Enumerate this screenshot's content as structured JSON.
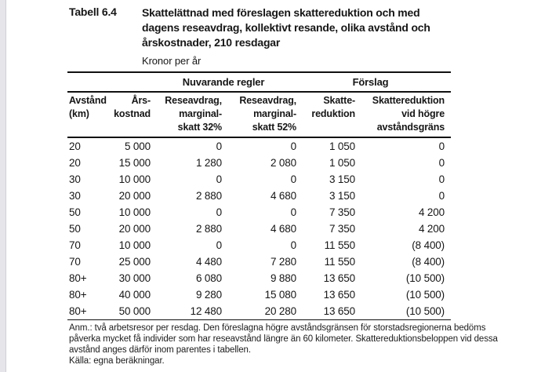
{
  "header": {
    "label": "Tabell 6.4",
    "title_lines": [
      "Skattelättnad med föreslagen skattereduktion och med",
      "dagens reseavdrag, kollektivt resande, olika avstånd och",
      "årskostnader, 210 resdagar"
    ],
    "subtitle": "Kronor per år"
  },
  "table": {
    "group_headers": {
      "current_rules": "Nuvarande regler",
      "proposal": "Förslag"
    },
    "columns": [
      "Avstånd\n(km)",
      "Års-\nkostnad",
      "Reseavdrag,\nmarginal-\nskatt 32%",
      "Reseavdrag,\nmarginal-\nskatt 52%",
      "Skatte-\nreduktion",
      "Skattereduktion\nvid högre\navståndsgräns"
    ],
    "rows": [
      [
        "20",
        "5 000",
        "0",
        "0",
        "1 050",
        "0"
      ],
      [
        "20",
        "15 000",
        "1 280",
        "2 080",
        "1 050",
        "0"
      ],
      [
        "30",
        "10 000",
        "0",
        "0",
        "3 150",
        "0"
      ],
      [
        "30",
        "20 000",
        "2 880",
        "4 680",
        "3 150",
        "0"
      ],
      [
        "50",
        "10 000",
        "0",
        "0",
        "7 350",
        "4 200"
      ],
      [
        "50",
        "20 000",
        "2 880",
        "4 680",
        "7 350",
        "4 200"
      ],
      [
        "70",
        "10 000",
        "0",
        "0",
        "11 550",
        "(8 400)"
      ],
      [
        "70",
        "25 000",
        "4 480",
        "7 280",
        "11 550",
        "(8 400)"
      ],
      [
        "80+",
        "30 000",
        "6 080",
        "9 880",
        "13 650",
        "(10 500)"
      ],
      [
        "80+",
        "40 000",
        "9 280",
        "15 080",
        "13 650",
        "(10 500)"
      ],
      [
        "80+",
        "50 000",
        "12 480",
        "20 280",
        "13 650",
        "(10 500)"
      ]
    ]
  },
  "footnote": {
    "lines": [
      "Anm.: två arbetsresor per resdag. Den föreslagna högre avståndsgränsen för storstadsregionerna bedöms",
      "påverka mycket få individer som har reseavstånd längre än 60 kilometer. Skattereduktionsbeloppen vid dessa",
      "avstånd anges därför inom parentes i tabellen.",
      "Källa: egna beräkningar."
    ]
  },
  "colors": {
    "text": "#161616",
    "rule": "#111111",
    "page_bg": "#ffffff",
    "left_strip": "#e6e6ea"
  }
}
